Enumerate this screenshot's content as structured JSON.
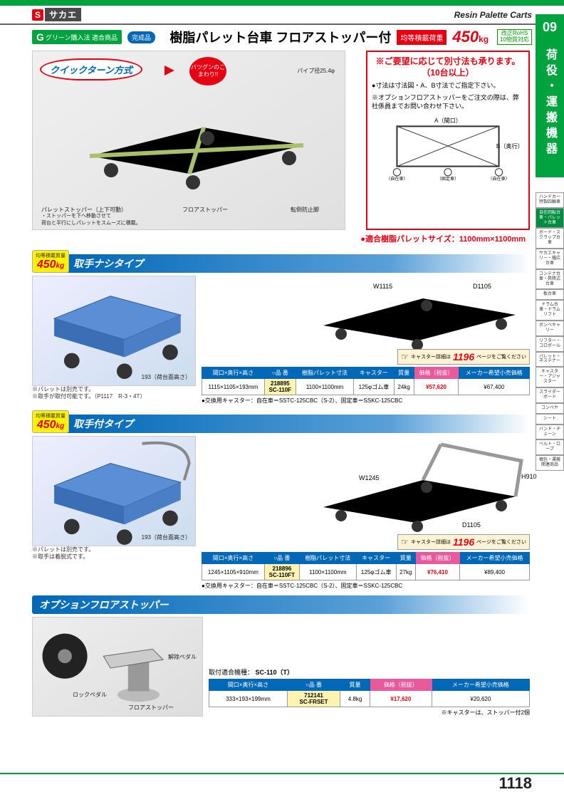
{
  "colors": {
    "brand_red": "#e60012",
    "brand_green": "#00a33e",
    "brand_blue": "#0068b7",
    "pink": "#e85a9c",
    "yellow_badge": "#fff100",
    "code_bg": "#fff3b0",
    "caster_bg": "#fff3d6",
    "cart_frame": "#a8c06a",
    "pallet_blue": "#5a8fd6"
  },
  "header": {
    "logo_s": "S",
    "logo_text": "サカエ",
    "category_en": "Resin Palette Carts"
  },
  "badges": {
    "green_g": "G",
    "green_text": "グリーン購入法 適合商品",
    "complete": "完成品",
    "rohs_line1": "改正RoHS",
    "rohs_line2": "10物質対応"
  },
  "title": {
    "main": "樹脂パレット台車 フロアストッパー付",
    "load_label": "均等積載荷重",
    "load_value": "450",
    "load_unit": "kg"
  },
  "side_tab": {
    "num": "09",
    "text": "荷役・運搬機器"
  },
  "side_categories": [
    "ハンドカー 特製四輪車",
    "自在回転台車・パレット台車",
    "ボード・スクラップ台車",
    "サカエキャリー・幅広台車",
    "コンテナ台車・昇降式台車",
    "板台車",
    "ドラム台車・ドラムリフト",
    "ボンベキャリー",
    "リフター・コロポール",
    "パレット・ネステナー",
    "キャスター・アジャスター",
    "スライダーボード",
    "コンベヤ",
    "シート",
    "バンド・チェーン",
    "ベルト・ロープ",
    "梱包・運搬 関連商品"
  ],
  "side_active_index": 1,
  "hero": {
    "turn_method": "クイックターン方式",
    "red_bubble": "バツグンのこまわり!!",
    "annotations": {
      "pipe": "パイプ径25.4φ",
      "pallet_stopper": "パレットストッパー（上下可動）",
      "pallet_stopper_sub": "・ストッパーを下へ移動させて\n荷台と平行にしパレットをスムーズに積載。",
      "floor_stopper": "フロアストッパー",
      "anti_tip": "転倒防止脚"
    },
    "notice": {
      "title": "※ご要望に応じて別寸法も承ります。（10台以上）",
      "body1": "●寸法は寸法図・A、B寸法でご指定下さい。",
      "body2": "※オプションフロアストッパーをご注文の際は、弊社係員までお問い合わせ下さい。",
      "diagram_labels": {
        "a": "A（間口）",
        "b": "B（奥行）",
        "l": "（自在車）",
        "c": "（固定車）",
        "r": "（自在車）"
      }
    },
    "compat": "●適合樹脂パレットサイズ：1100mm×1100mm"
  },
  "load_pill": {
    "label": "均等積載質量",
    "value": "450",
    "unit": "kg"
  },
  "sections": {
    "s1": {
      "title": "取手ナシタイプ"
    },
    "s2": {
      "title": "取手付タイプ"
    },
    "option": {
      "title": "オプションフロアストッパー"
    }
  },
  "notes": {
    "pallet_sold_sep": "※パレットは別売です。",
    "handle_opt": "※取手が取付可能です。（P1117　R-3・4T）",
    "handle_detach": "※取手は着脱式です。",
    "platform_height": "193（荷台面高さ）",
    "dims_s1": {
      "w": "W1115",
      "d": "D1105"
    },
    "dims_s2": {
      "w": "W1245",
      "d": "D1105",
      "h": "H910"
    }
  },
  "caster_ref": {
    "label": "キャスター詳細は",
    "page": "1196",
    "sub": "ページをご覧ください"
  },
  "table_headers": {
    "size": "間口×奥行×高さ",
    "code": "○品 番",
    "pallet": "樹脂パレット寸法",
    "caster": "キャスター",
    "mass": "質量",
    "price": "価格（税抜）",
    "msrp": "メーカー希望小売価格"
  },
  "table1": {
    "size": "1115×1105×193mm",
    "sub": "218895",
    "code": "SC-110F",
    "pallet": "1100×1100mm",
    "caster": "125φゴム車",
    "mass": "24kg",
    "price": "¥57,620",
    "msrp": "¥67,400",
    "caster_note": "●交換用キャスター：自在車＝SSTC-125CBC（S-2）、固定車＝SSKC-125CBC"
  },
  "table2": {
    "size": "1245×1105×910mm",
    "sub": "218896",
    "code": "SC-110FT",
    "pallet": "1100×1100mm",
    "caster": "125φゴム車",
    "mass": "27kg",
    "price": "¥76,410",
    "msrp": "¥89,400",
    "caster_note": "●交換用キャスター：自在車＝SSTC-125CBC（S-2）、固定車＝SSKC-125CBC"
  },
  "option": {
    "labels": {
      "release": "解除ペダル",
      "lock": "ロックペダル",
      "stopper": "フロアストッパー"
    },
    "model_label": "取付適合機種：",
    "model": "SC-110（T）",
    "table": {
      "size": "333×193×199mm",
      "sub": "712141",
      "code": "SC-FRSET",
      "mass": "4.8kg",
      "price": "¥17,620",
      "msrp": "¥20,620"
    },
    "footnote": "※キャスターは、ストッパー付2個"
  },
  "page_number": "1118"
}
